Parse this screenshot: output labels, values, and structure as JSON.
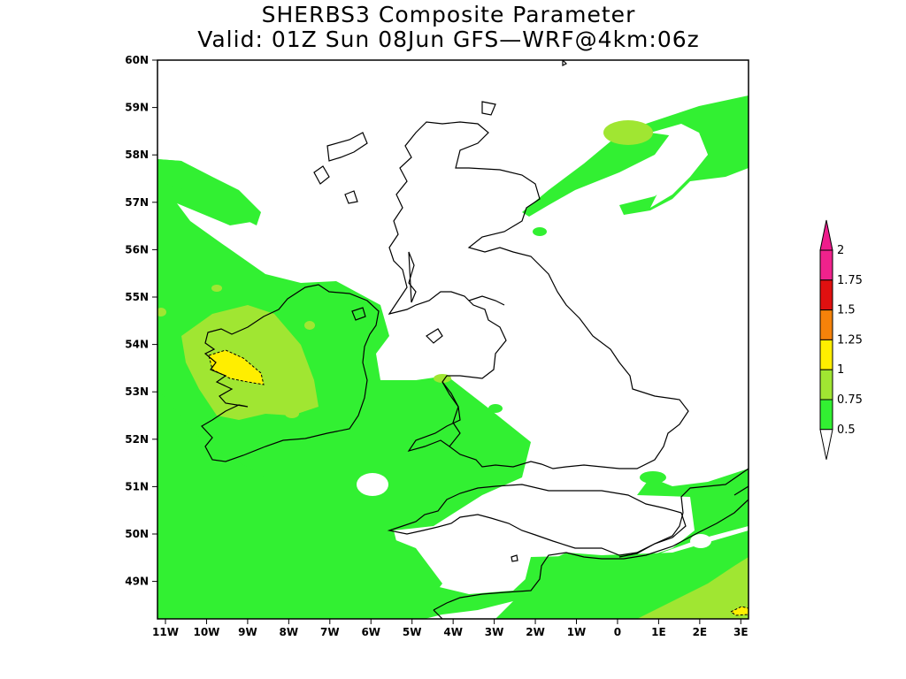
{
  "title": {
    "line1": "SHERBS3 Composite Parameter",
    "line2": "Valid: 01Z Sun 08Jun GFS—WRF@4km:06z"
  },
  "map": {
    "lat_labels": [
      "60N",
      "59N",
      "58N",
      "57N",
      "56N",
      "55N",
      "54N",
      "53N",
      "52N",
      "51N",
      "50N",
      "49N"
    ],
    "lon_labels": [
      "11W",
      "10W",
      "9W",
      "8W",
      "7W",
      "6W",
      "5W",
      "4W",
      "3W",
      "2W",
      "1W",
      "0",
      "1E",
      "2E",
      "3E"
    ],
    "lat_range": [
      48.2,
      60
    ],
    "lon_range": [
      -11.2,
      3.2
    ]
  },
  "colorbar": {
    "labels": [
      "2",
      "1.75",
      "1.5",
      "1.25",
      "1",
      "0.75",
      "0.5"
    ],
    "colors": [
      "#f0228c",
      "#e01010",
      "#f5820a",
      "#ffee00",
      "#a0e632",
      "#32f032"
    ],
    "top_arrow_color": "#ee1c8c",
    "bottom_arrow_color": "#ffffff"
  },
  "colors": {
    "band_0_5": "#32f032",
    "band_0_75": "#a0e632",
    "band_1": "#ffee00",
    "coast": "#000000"
  }
}
